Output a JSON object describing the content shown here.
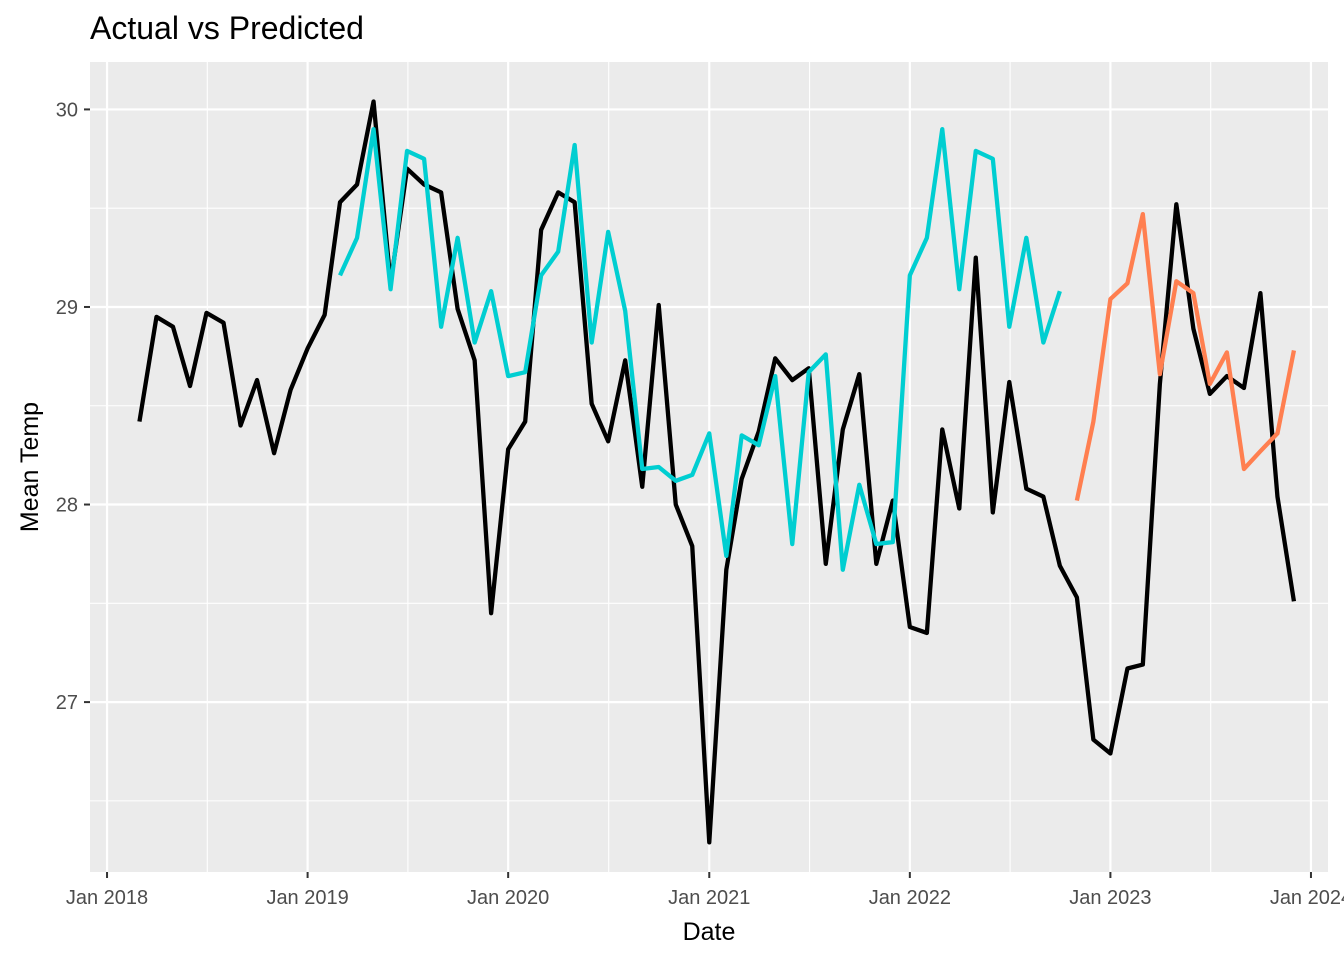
{
  "chart_data": {
    "type": "line",
    "title": "Actual vs Predicted",
    "xlabel": "Date",
    "ylabel": "Mean Temp",
    "x_ticks": [
      "Jan 2018",
      "Jan 2019",
      "Jan 2020",
      "Jan 2021",
      "Jan 2022",
      "Jan 2023",
      "Jan 2024"
    ],
    "y_ticks": [
      "27",
      "28",
      "29",
      "30"
    ],
    "xlim": [
      "2017-12-01",
      "2024-02-01"
    ],
    "ylim": [
      26.14,
      30.24
    ],
    "grid": true,
    "legend": "none",
    "series": [
      {
        "color": "#000000",
        "points": [
          [
            "2018-03",
            28.42
          ],
          [
            "2018-04",
            28.95
          ],
          [
            "2018-05",
            28.9
          ],
          [
            "2018-06",
            28.6
          ],
          [
            "2018-07",
            28.97
          ],
          [
            "2018-08",
            28.92
          ],
          [
            "2018-09",
            28.4
          ],
          [
            "2018-10",
            28.63
          ],
          [
            "2018-11",
            28.26
          ],
          [
            "2018-12",
            28.58
          ],
          [
            "2019-01",
            28.79
          ],
          [
            "2019-02",
            28.96
          ],
          [
            "2019-03",
            29.53
          ],
          [
            "2019-04",
            29.62
          ],
          [
            "2019-05",
            30.04
          ],
          [
            "2019-06",
            29.12
          ],
          [
            "2019-07",
            29.7
          ],
          [
            "2019-08",
            29.62
          ],
          [
            "2019-09",
            29.58
          ],
          [
            "2019-10",
            28.99
          ],
          [
            "2019-11",
            28.73
          ],
          [
            "2019-12",
            27.45
          ],
          [
            "2020-01",
            28.28
          ],
          [
            "2020-02",
            28.42
          ],
          [
            "2020-03",
            29.39
          ],
          [
            "2020-04",
            29.58
          ],
          [
            "2020-05",
            29.53
          ],
          [
            "2020-06",
            28.51
          ],
          [
            "2020-07",
            28.32
          ],
          [
            "2020-08",
            28.73
          ],
          [
            "2020-09",
            28.09
          ],
          [
            "2020-10",
            29.01
          ],
          [
            "2020-11",
            28.0
          ],
          [
            "2020-12",
            27.79
          ],
          [
            "2021-01",
            26.29
          ],
          [
            "2021-02",
            27.67
          ],
          [
            "2021-03",
            28.13
          ],
          [
            "2021-04",
            28.37
          ],
          [
            "2021-05",
            28.74
          ],
          [
            "2021-06",
            28.63
          ],
          [
            "2021-07",
            28.69
          ],
          [
            "2021-08",
            27.7
          ],
          [
            "2021-09",
            28.38
          ],
          [
            "2021-10",
            28.66
          ],
          [
            "2021-11",
            27.7
          ],
          [
            "2021-12",
            28.02
          ],
          [
            "2022-01",
            27.38
          ],
          [
            "2022-02",
            27.35
          ],
          [
            "2022-03",
            28.38
          ],
          [
            "2022-04",
            27.98
          ],
          [
            "2022-05",
            29.25
          ],
          [
            "2022-06",
            27.96
          ],
          [
            "2022-07",
            28.62
          ],
          [
            "2022-08",
            28.08
          ],
          [
            "2022-09",
            28.04
          ],
          [
            "2022-10",
            27.69
          ],
          [
            "2022-11",
            27.53
          ],
          [
            "2022-12",
            26.81
          ],
          [
            "2023-01",
            26.74
          ],
          [
            "2023-02",
            27.17
          ],
          [
            "2023-03",
            27.19
          ],
          [
            "2023-04",
            28.61
          ],
          [
            "2023-05",
            29.52
          ],
          [
            "2023-06",
            28.89
          ],
          [
            "2023-07",
            28.56
          ],
          [
            "2023-08",
            28.65
          ],
          [
            "2023-09",
            28.59
          ],
          [
            "2023-10",
            29.07
          ],
          [
            "2023-11",
            28.04
          ],
          [
            "2023-12",
            27.51
          ]
        ]
      },
      {
        "color": "#00CED1",
        "points": [
          [
            "2019-03",
            29.16
          ],
          [
            "2019-04",
            29.35
          ],
          [
            "2019-05",
            29.9
          ],
          [
            "2019-06",
            29.09
          ],
          [
            "2019-07",
            29.79
          ],
          [
            "2019-08",
            29.75
          ],
          [
            "2019-09",
            28.9
          ],
          [
            "2019-10",
            29.35
          ],
          [
            "2019-11",
            28.82
          ],
          [
            "2019-12",
            29.08
          ],
          [
            "2020-01",
            28.65
          ],
          [
            "2020-02",
            28.67
          ],
          [
            "2020-03",
            29.16
          ],
          [
            "2020-04",
            29.28
          ],
          [
            "2020-05",
            29.82
          ],
          [
            "2020-06",
            28.82
          ],
          [
            "2020-07",
            29.38
          ],
          [
            "2020-08",
            28.98
          ],
          [
            "2020-09",
            28.18
          ],
          [
            "2020-10",
            28.19
          ],
          [
            "2020-11",
            28.12
          ],
          [
            "2020-12",
            28.15
          ],
          [
            "2021-01",
            28.36
          ],
          [
            "2021-02",
            27.74
          ],
          [
            "2021-03",
            28.35
          ],
          [
            "2021-04",
            28.3
          ],
          [
            "2021-05",
            28.65
          ],
          [
            "2021-06",
            27.8
          ],
          [
            "2021-07",
            28.67
          ],
          [
            "2021-08",
            28.76
          ],
          [
            "2021-09",
            27.67
          ],
          [
            "2021-10",
            28.1
          ],
          [
            "2021-11",
            27.8
          ],
          [
            "2021-12",
            27.81
          ],
          [
            "2022-01",
            29.16
          ],
          [
            "2022-02",
            29.35
          ],
          [
            "2022-03",
            29.9
          ],
          [
            "2022-04",
            29.09
          ],
          [
            "2022-05",
            29.79
          ],
          [
            "2022-06",
            29.75
          ],
          [
            "2022-07",
            28.9
          ],
          [
            "2022-08",
            29.35
          ],
          [
            "2022-09",
            28.82
          ],
          [
            "2022-10",
            29.08
          ]
        ]
      },
      {
        "color": "#FF7F50",
        "points": [
          [
            "2022-11",
            28.02
          ],
          [
            "2022-12",
            28.42
          ],
          [
            "2023-01",
            29.04
          ],
          [
            "2023-02",
            29.12
          ],
          [
            "2023-03",
            29.47
          ],
          [
            "2023-04",
            28.66
          ],
          [
            "2023-05",
            29.13
          ],
          [
            "2023-06",
            29.07
          ],
          [
            "2023-07",
            28.61
          ],
          [
            "2023-08",
            28.77
          ],
          [
            "2023-09",
            28.18
          ],
          [
            "2023-10",
            28.27
          ],
          [
            "2023-11",
            28.36
          ],
          [
            "2023-12",
            28.78
          ]
        ]
      }
    ]
  }
}
